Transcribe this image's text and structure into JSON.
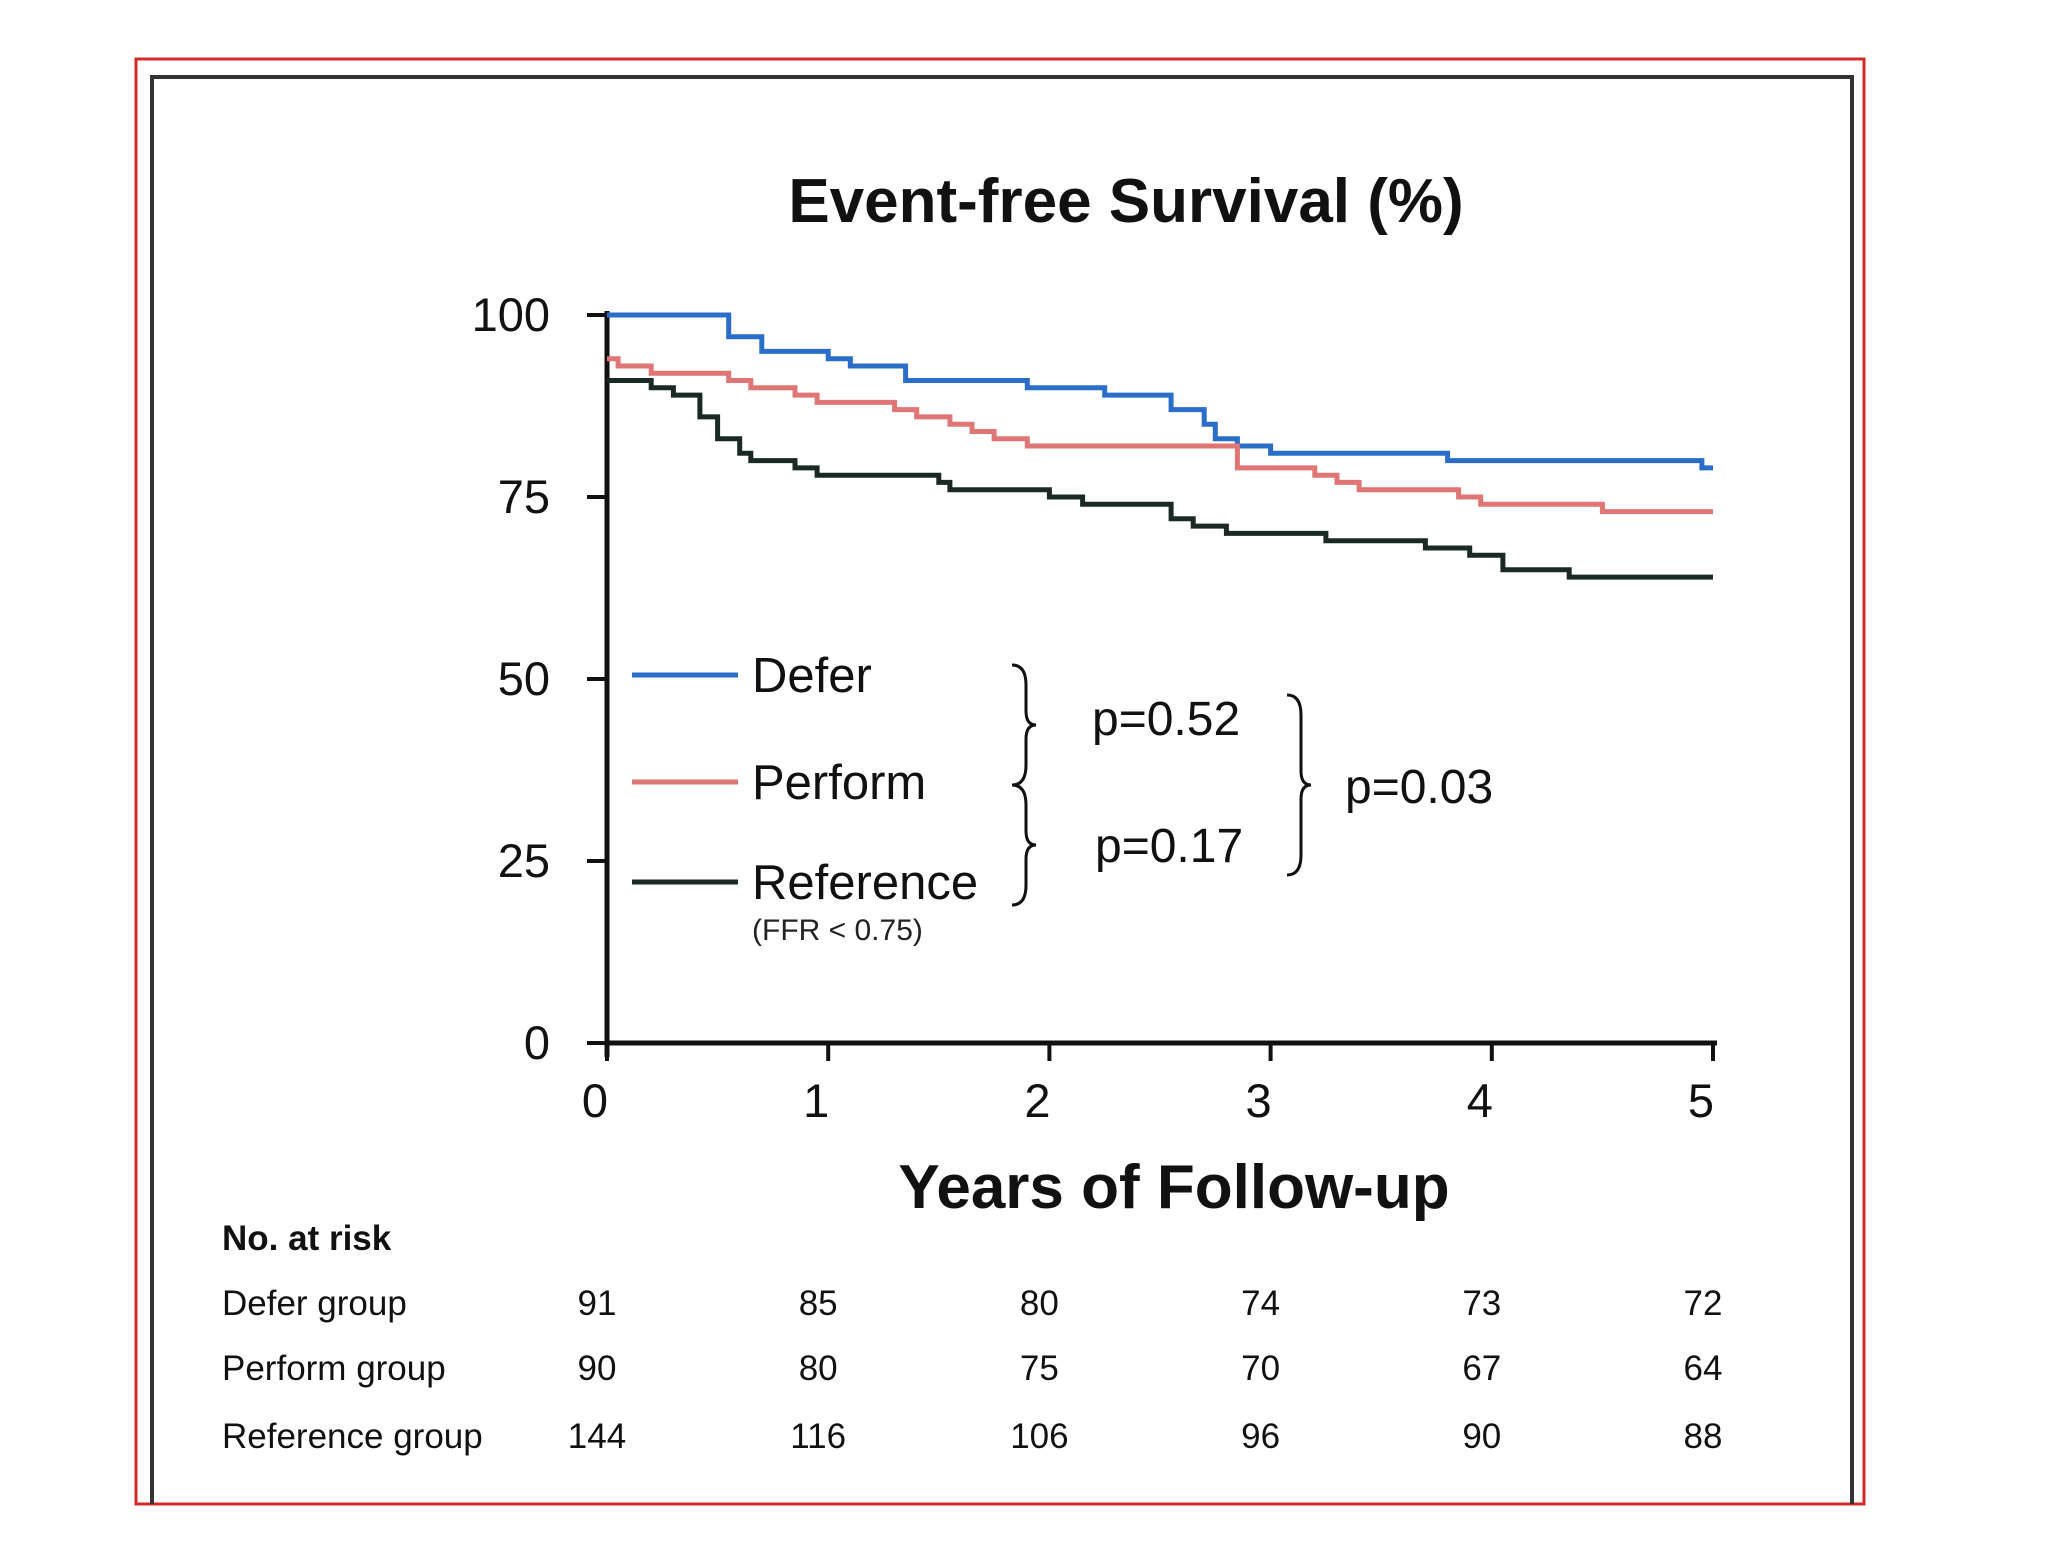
{
  "chart_data": {
    "type": "line",
    "title": "Event-free Survival (%)",
    "xlabel": "Years of Follow-up",
    "ylabel": "",
    "xlim": [
      0,
      5
    ],
    "ylim": [
      0,
      100
    ],
    "x_ticks": [
      "0",
      "1",
      "2",
      "3",
      "4",
      "5"
    ],
    "y_ticks": [
      "0",
      "25",
      "50",
      "75",
      "100"
    ],
    "grid": false,
    "legend_position": "center-left",
    "series": [
      {
        "name": "Defer",
        "color": "#2a6ec9",
        "points": [
          [
            0,
            100
          ],
          [
            0.5,
            100
          ],
          [
            0.55,
            97
          ],
          [
            0.7,
            95
          ],
          [
            1.0,
            94
          ],
          [
            1.1,
            93
          ],
          [
            1.35,
            91
          ],
          [
            1.9,
            90
          ],
          [
            2.25,
            89
          ],
          [
            2.55,
            87
          ],
          [
            2.7,
            85
          ],
          [
            2.75,
            83
          ],
          [
            2.85,
            82
          ],
          [
            3.0,
            81
          ],
          [
            3.8,
            80
          ],
          [
            4.95,
            79
          ],
          [
            5,
            79
          ]
        ]
      },
      {
        "name": "Perform",
        "color": "#e07575",
        "points": [
          [
            0,
            94
          ],
          [
            0.05,
            93
          ],
          [
            0.2,
            92
          ],
          [
            0.55,
            91
          ],
          [
            0.65,
            90
          ],
          [
            0.85,
            89
          ],
          [
            0.95,
            88
          ],
          [
            1.3,
            87
          ],
          [
            1.4,
            86
          ],
          [
            1.55,
            85
          ],
          [
            1.65,
            84
          ],
          [
            1.75,
            83
          ],
          [
            1.9,
            82
          ],
          [
            2.2,
            82
          ],
          [
            2.75,
            82
          ],
          [
            2.85,
            79
          ],
          [
            3.2,
            78
          ],
          [
            3.3,
            77
          ],
          [
            3.4,
            76
          ],
          [
            3.85,
            75
          ],
          [
            3.95,
            74
          ],
          [
            4.5,
            73
          ],
          [
            5,
            73
          ]
        ]
      },
      {
        "name": "Reference",
        "sublabel": "(FFR < 0.75)",
        "color": "#1a2a22",
        "points": [
          [
            0,
            91
          ],
          [
            0.2,
            90
          ],
          [
            0.3,
            89
          ],
          [
            0.42,
            86
          ],
          [
            0.5,
            83
          ],
          [
            0.6,
            81
          ],
          [
            0.65,
            80
          ],
          [
            0.85,
            79
          ],
          [
            0.95,
            78
          ],
          [
            1.5,
            77
          ],
          [
            1.55,
            76
          ],
          [
            1.9,
            76
          ],
          [
            2.0,
            75
          ],
          [
            2.15,
            74
          ],
          [
            2.4,
            74
          ],
          [
            2.55,
            72
          ],
          [
            2.65,
            71
          ],
          [
            2.8,
            70
          ],
          [
            3.05,
            70
          ],
          [
            3.25,
            69
          ],
          [
            3.5,
            69
          ],
          [
            3.7,
            68
          ],
          [
            3.9,
            67
          ],
          [
            4.05,
            65
          ],
          [
            4.35,
            64
          ],
          [
            5,
            64
          ]
        ]
      }
    ],
    "annotations": [
      {
        "text": "p=0.52",
        "compares": [
          "Defer",
          "Perform"
        ]
      },
      {
        "text": "p=0.17",
        "compares": [
          "Perform",
          "Reference"
        ]
      },
      {
        "text": "p=0.03",
        "compares": [
          "Defer",
          "Reference"
        ]
      }
    ],
    "risk_table": {
      "header": "No. at risk",
      "x": [
        0,
        1,
        2,
        3,
        4,
        5
      ],
      "rows": [
        {
          "label": "Defer group",
          "values": [
            "91",
            "85",
            "80",
            "74",
            "73",
            "72"
          ]
        },
        {
          "label": "Perform group",
          "values": [
            "90",
            "80",
            "75",
            "70",
            "67",
            "64"
          ]
        },
        {
          "label": "Reference group",
          "values": [
            "144",
            "116",
            "106",
            "96",
            "90",
            "88"
          ]
        }
      ]
    }
  },
  "colors": {
    "outer_frame": "#d42a2a",
    "inner_frame": "#333333",
    "axis": "#111111"
  }
}
